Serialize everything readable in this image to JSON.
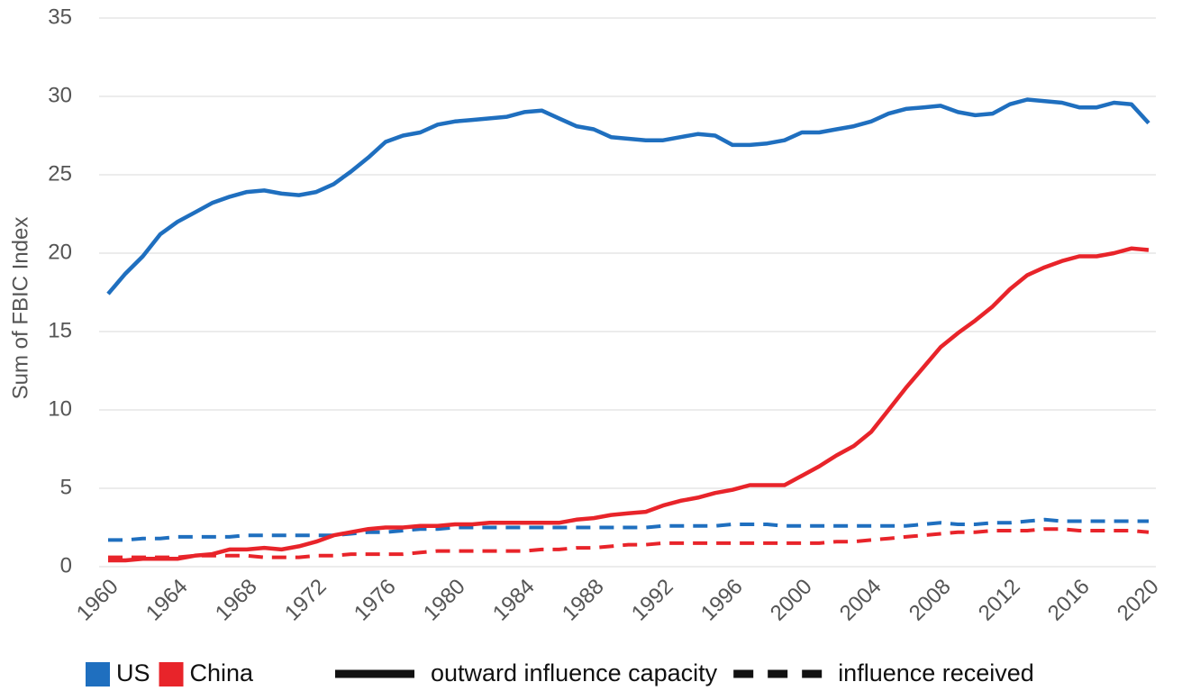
{
  "chart_data": {
    "type": "line",
    "ylabel": "Sum of FBIC Index",
    "x": [
      1960,
      1961,
      1962,
      1963,
      1964,
      1965,
      1966,
      1967,
      1968,
      1969,
      1970,
      1971,
      1972,
      1973,
      1974,
      1975,
      1976,
      1977,
      1978,
      1979,
      1980,
      1981,
      1982,
      1983,
      1984,
      1985,
      1986,
      1987,
      1988,
      1989,
      1990,
      1991,
      1992,
      1993,
      1994,
      1995,
      1996,
      1997,
      1998,
      1999,
      2000,
      2001,
      2002,
      2003,
      2004,
      2005,
      2006,
      2007,
      2008,
      2009,
      2010,
      2011,
      2012,
      2013,
      2014,
      2015,
      2016,
      2017,
      2018,
      2019,
      2020
    ],
    "xlim": [
      1960,
      2020
    ],
    "xticks": [
      1960,
      1964,
      1968,
      1972,
      1976,
      1980,
      1984,
      1988,
      1992,
      1996,
      2000,
      2004,
      2008,
      2012,
      2016,
      2020
    ],
    "ylim": [
      0,
      35
    ],
    "yticks": [
      0,
      5,
      10,
      15,
      20,
      25,
      30,
      35
    ],
    "grid": true,
    "measures": [
      "outward influence capacity",
      "influence received"
    ],
    "line_styles": [
      "solid",
      "dashed"
    ],
    "series": [
      {
        "name": "US",
        "color": "#1f6fbf",
        "values": [
          [
            17.4,
            18.7,
            19.8,
            21.2,
            22.0,
            22.6,
            23.2,
            23.6,
            23.9,
            24.0,
            23.8,
            23.7,
            23.9,
            24.4,
            25.2,
            26.1,
            27.1,
            27.5,
            27.7,
            28.2,
            28.4,
            28.5,
            28.6,
            28.7,
            29.0,
            29.1,
            28.6,
            28.1,
            27.9,
            27.4,
            27.3,
            27.2,
            27.2,
            27.4,
            27.6,
            27.5,
            26.9,
            26.9,
            27.0,
            27.2,
            27.7,
            27.7,
            27.9,
            28.1,
            28.4,
            28.9,
            29.2,
            29.3,
            29.4,
            29.0,
            28.8,
            28.9,
            29.5,
            29.8,
            29.7,
            29.6,
            29.3,
            29.3,
            29.6,
            29.5,
            28.3
          ],
          [
            1.7,
            1.7,
            1.8,
            1.8,
            1.9,
            1.9,
            1.9,
            1.9,
            2.0,
            2.0,
            2.0,
            2.0,
            2.0,
            2.0,
            2.1,
            2.2,
            2.2,
            2.3,
            2.4,
            2.4,
            2.5,
            2.5,
            2.5,
            2.5,
            2.5,
            2.5,
            2.5,
            2.5,
            2.5,
            2.5,
            2.5,
            2.5,
            2.6,
            2.6,
            2.6,
            2.6,
            2.7,
            2.7,
            2.7,
            2.6,
            2.6,
            2.6,
            2.6,
            2.6,
            2.6,
            2.6,
            2.6,
            2.7,
            2.8,
            2.7,
            2.7,
            2.8,
            2.8,
            2.9,
            3.0,
            2.9,
            2.9,
            2.9,
            2.9,
            2.9,
            2.9
          ]
        ]
      },
      {
        "name": "China",
        "color": "#e8242a",
        "values": [
          [
            0.4,
            0.4,
            0.5,
            0.5,
            0.5,
            0.7,
            0.8,
            1.1,
            1.1,
            1.2,
            1.1,
            1.3,
            1.6,
            2.0,
            2.2,
            2.4,
            2.5,
            2.5,
            2.6,
            2.6,
            2.7,
            2.7,
            2.8,
            2.8,
            2.8,
            2.8,
            2.8,
            3.0,
            3.1,
            3.3,
            3.4,
            3.5,
            3.9,
            4.2,
            4.4,
            4.7,
            4.9,
            5.2,
            5.2,
            5.2,
            5.8,
            6.4,
            7.1,
            7.7,
            8.6,
            10.0,
            11.4,
            12.7,
            14.0,
            14.9,
            15.7,
            16.6,
            17.7,
            18.6,
            19.1,
            19.5,
            19.8,
            19.8,
            20.0,
            20.3,
            20.2
          ],
          [
            0.6,
            0.6,
            0.6,
            0.6,
            0.6,
            0.7,
            0.7,
            0.7,
            0.7,
            0.6,
            0.6,
            0.6,
            0.7,
            0.7,
            0.8,
            0.8,
            0.8,
            0.8,
            0.9,
            1.0,
            1.0,
            1.0,
            1.0,
            1.0,
            1.0,
            1.1,
            1.1,
            1.2,
            1.2,
            1.3,
            1.4,
            1.4,
            1.5,
            1.5,
            1.5,
            1.5,
            1.5,
            1.5,
            1.5,
            1.5,
            1.5,
            1.5,
            1.6,
            1.6,
            1.7,
            1.8,
            1.9,
            2.0,
            2.1,
            2.2,
            2.2,
            2.3,
            2.3,
            2.3,
            2.4,
            2.4,
            2.3,
            2.3,
            2.3,
            2.3,
            2.2
          ]
        ]
      }
    ]
  }
}
